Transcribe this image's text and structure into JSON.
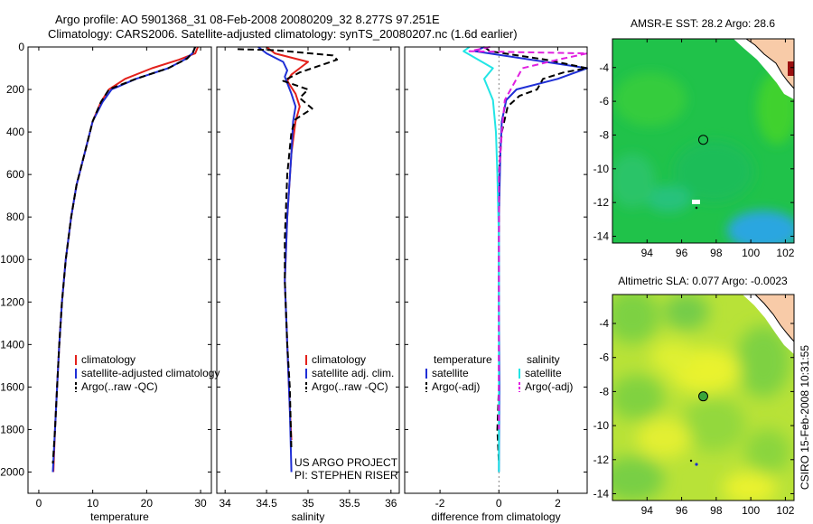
{
  "header": {
    "title": "Argo profile: AO 5901368_31 08-Feb-2008 20080209_32 8.277S 97.251E",
    "subtitle": "Climatology: CARS2006. Satellite-adjusted climatology: synTS_20080207.nc (1.6d earlier)"
  },
  "credit": "CSIRO 15-Feb-2008 10:31:55",
  "colors": {
    "climatology": "#e3201b",
    "satellite": "#1f2fd6",
    "argo": "#000000",
    "satellite_salinity": "#22e5e5",
    "argo_salinity_adj": "#e020e0"
  },
  "chart_data": [
    {
      "id": "temperature-profile",
      "type": "line",
      "xlabel": "temperature",
      "xlim": [
        -2,
        32
      ],
      "ylim": [
        2100,
        0
      ],
      "x_ticks": [
        0,
        10,
        20,
        30
      ],
      "y_ticks": [
        0,
        200,
        400,
        600,
        800,
        1000,
        1200,
        1400,
        1600,
        1800,
        2000
      ],
      "legend": {
        "placement": "lower-center",
        "labels": [
          "climatology",
          "satellite-adjusted climatology",
          "Argo(..raw -QC)"
        ]
      },
      "series": [
        {
          "name": "climatology",
          "color": "#e3201b",
          "dash": "solid",
          "points": [
            [
              29.5,
              0
            ],
            [
              29,
              30
            ],
            [
              26,
              60
            ],
            [
              21,
              100
            ],
            [
              16,
              150
            ],
            [
              13,
              200
            ],
            [
              11.5,
              260
            ],
            [
              10,
              350
            ],
            [
              8.5,
              500
            ],
            [
              7,
              650
            ],
            [
              6,
              800
            ],
            [
              5,
              1000
            ],
            [
              4.3,
              1200
            ],
            [
              3.8,
              1400
            ],
            [
              3.4,
              1600
            ],
            [
              3,
              1800
            ],
            [
              2.7,
              2000
            ]
          ]
        },
        {
          "name": "satellite-adjusted climatology",
          "color": "#1f2fd6",
          "dash": "solid",
          "points": [
            [
              29,
              0
            ],
            [
              28.5,
              30
            ],
            [
              27,
              60
            ],
            [
              24,
              100
            ],
            [
              18,
              150
            ],
            [
              13.5,
              200
            ],
            [
              11.8,
              260
            ],
            [
              10,
              350
            ],
            [
              8.5,
              500
            ],
            [
              7,
              650
            ],
            [
              6,
              800
            ],
            [
              5,
              1000
            ],
            [
              4.3,
              1200
            ],
            [
              3.8,
              1400
            ],
            [
              3.4,
              1600
            ],
            [
              3,
              1800
            ],
            [
              2.6,
              2000
            ]
          ]
        },
        {
          "name": "Argo(..raw -QC)",
          "color": "#000000",
          "dash": "dash",
          "points": [
            [
              29,
              0
            ],
            [
              28.6,
              25
            ],
            [
              27.5,
              55
            ],
            [
              24,
              100
            ],
            [
              18,
              150
            ],
            [
              13,
              200
            ],
            [
              11.5,
              260
            ],
            [
              10,
              350
            ],
            [
              8.5,
              500
            ],
            [
              7,
              650
            ],
            [
              6,
              800
            ],
            [
              5,
              1000
            ],
            [
              4.3,
              1200
            ],
            [
              3.8,
              1400
            ],
            [
              3.4,
              1600
            ],
            [
              3,
              1800
            ],
            [
              2.6,
              1960
            ]
          ]
        }
      ]
    },
    {
      "id": "salinity-profile",
      "type": "line",
      "xlabel": "salinity",
      "xlim": [
        33.9,
        36.1
      ],
      "ylim": [
        2100,
        0
      ],
      "x_ticks": [
        34,
        34.5,
        35,
        35.5,
        36
      ],
      "legend": {
        "placement": "lower-right",
        "labels": [
          "climatology",
          "satellite adj. clim.",
          "Argo(..raw -QC)"
        ]
      },
      "annotations": [
        "US ARGO PROJECT",
        "PI: STEPHEN RISER"
      ],
      "series": [
        {
          "name": "climatology",
          "color": "#e3201b",
          "dash": "solid",
          "points": [
            [
              34.5,
              0
            ],
            [
              34.6,
              30
            ],
            [
              35.0,
              70
            ],
            [
              34.9,
              100
            ],
            [
              34.8,
              130
            ],
            [
              34.75,
              160
            ],
            [
              34.85,
              220
            ],
            [
              34.9,
              280
            ],
            [
              34.85,
              350
            ],
            [
              34.8,
              500
            ],
            [
              34.75,
              800
            ],
            [
              34.72,
              1100
            ],
            [
              34.75,
              1400
            ],
            [
              34.78,
              1700
            ],
            [
              34.8,
              1850
            ]
          ]
        },
        {
          "name": "satellite adj. clim.",
          "color": "#1f2fd6",
          "dash": "solid",
          "points": [
            [
              34.4,
              0
            ],
            [
              34.5,
              30
            ],
            [
              34.7,
              70
            ],
            [
              34.75,
              110
            ],
            [
              34.72,
              140
            ],
            [
              34.75,
              170
            ],
            [
              34.8,
              220
            ],
            [
              34.85,
              280
            ],
            [
              34.82,
              350
            ],
            [
              34.8,
              500
            ],
            [
              34.75,
              800
            ],
            [
              34.72,
              1100
            ],
            [
              34.75,
              1400
            ],
            [
              34.78,
              1700
            ],
            [
              34.8,
              2000
            ]
          ]
        },
        {
          "name": "Argo(..raw -QC)",
          "color": "#000000",
          "dash": "dash",
          "points": [
            [
              34.15,
              10
            ],
            [
              34.6,
              15
            ],
            [
              35.3,
              40
            ],
            [
              35.35,
              60
            ],
            [
              34.9,
              120
            ],
            [
              34.7,
              160
            ],
            [
              35.0,
              200
            ],
            [
              34.9,
              240
            ],
            [
              35.05,
              290
            ],
            [
              34.85,
              340
            ],
            [
              34.8,
              400
            ],
            [
              34.75,
              600
            ],
            [
              34.72,
              900
            ],
            [
              34.72,
              1100
            ],
            [
              34.75,
              1400
            ],
            [
              34.78,
              1600
            ],
            [
              34.8,
              1900
            ]
          ]
        }
      ]
    },
    {
      "id": "difference-profile",
      "type": "line",
      "xlabel": "difference from climatology",
      "xlim": [
        -3.2,
        3
      ],
      "ylim": [
        2100,
        0
      ],
      "x_ticks": [
        -2,
        0,
        2
      ],
      "legend": {
        "placement": "lower-center",
        "groups": [
          {
            "title": "temperature",
            "labels": [
              "satellite",
              "Argo(-adj)"
            ]
          },
          {
            "title": "salinity",
            "labels": [
              "satellite",
              "Argo(-adj)"
            ]
          }
        ]
      },
      "series": [
        {
          "name": "temperature satellite",
          "color": "#1f2fd6",
          "dash": "solid",
          "points": [
            [
              -0.5,
              0
            ],
            [
              -0.8,
              20
            ],
            [
              3,
              100
            ],
            [
              2.0,
              150
            ],
            [
              0.6,
              200
            ],
            [
              0.25,
              250
            ],
            [
              0.1,
              350
            ],
            [
              0.05,
              500
            ],
            [
              0,
              800
            ],
            [
              0,
              1200
            ],
            [
              0.02,
              1600
            ],
            [
              0,
              2000
            ]
          ]
        },
        {
          "name": "temperature Argo(-adj)",
          "color": "#000000",
          "dash": "dash",
          "points": [
            [
              -0.5,
              0
            ],
            [
              -0.3,
              20
            ],
            [
              1.6,
              60
            ],
            [
              3,
              100
            ],
            [
              2.2,
              120
            ],
            [
              1.5,
              150
            ],
            [
              1.3,
              200
            ],
            [
              0.7,
              230
            ],
            [
              0.3,
              280
            ],
            [
              0.1,
              400
            ],
            [
              0,
              600
            ],
            [
              0,
              1000
            ],
            [
              0,
              1300
            ],
            [
              0,
              1600
            ],
            [
              -0.05,
              1800
            ],
            [
              0,
              1960
            ]
          ]
        },
        {
          "name": "salinity satellite",
          "color": "#22e5e5",
          "dash": "solid",
          "points": [
            [
              -1,
              0
            ],
            [
              -1.2,
              20
            ],
            [
              -0.7,
              60
            ],
            [
              -0.2,
              100
            ],
            [
              -0.5,
              150
            ],
            [
              -0.2,
              250
            ],
            [
              -0.1,
              400
            ],
            [
              -0.05,
              600
            ],
            [
              0,
              900
            ],
            [
              0,
              1200
            ],
            [
              0,
              1600
            ],
            [
              0,
              2000
            ]
          ]
        },
        {
          "name": "salinity Argo(-adj)",
          "color": "#e020e0",
          "dash": "dash",
          "points": [
            [
              -0.3,
              0
            ],
            [
              -1.0,
              20
            ],
            [
              3,
              30
            ],
            [
              2.0,
              60
            ],
            [
              0.8,
              100
            ],
            [
              0.6,
              150
            ],
            [
              0.2,
              250
            ],
            [
              0.1,
              400
            ],
            [
              0,
              600
            ],
            [
              0,
              1000
            ],
            [
              0,
              1400
            ],
            [
              0,
              1800
            ]
          ]
        }
      ]
    }
  ],
  "maps": [
    {
      "id": "sst-map",
      "title": "AMSR-E SST: 28.2 Argo: 28.6",
      "xlim": [
        92,
        102.5
      ],
      "ylim": [
        -14.4,
        -2.3
      ],
      "x_ticks": [
        94,
        96,
        98,
        100,
        102
      ],
      "y_ticks": [
        -4,
        -6,
        -8,
        -10,
        -12,
        -14
      ],
      "argo_position": [
        97.25,
        -8.28
      ]
    },
    {
      "id": "sla-map",
      "title": "Altimetric SLA: 0.077 Argo: -0.0023",
      "xlim": [
        92,
        102.5
      ],
      "ylim": [
        -14.4,
        -2.3
      ],
      "x_ticks": [
        94,
        96,
        98,
        100,
        102
      ],
      "y_ticks": [
        -4,
        -6,
        -8,
        -10,
        -12,
        -14
      ],
      "argo_position": [
        97.25,
        -8.28
      ]
    }
  ]
}
